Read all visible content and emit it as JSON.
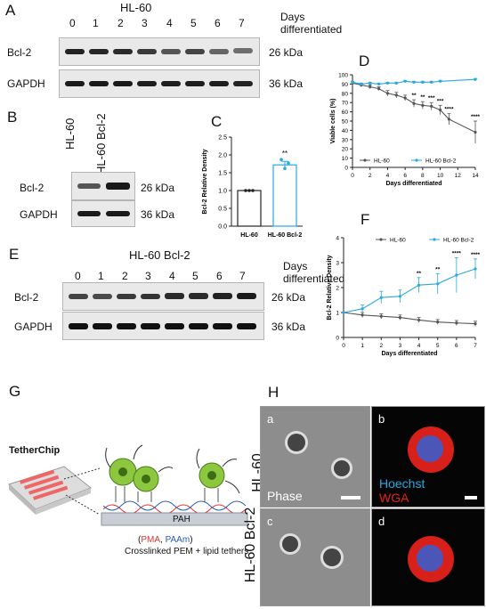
{
  "panel_labels": {
    "A": "A",
    "B": "B",
    "C": "C",
    "D": "D",
    "E": "E",
    "F": "F",
    "G": "G",
    "H": "H"
  },
  "panelA": {
    "title": "HL-60",
    "days": [
      "0",
      "1",
      "2",
      "3",
      "4",
      "5",
      "6",
      "7"
    ],
    "days_header": "Days differentiated",
    "rows": [
      {
        "name": "Bcl-2",
        "kda": "26 kDa"
      },
      {
        "name": "GAPDH",
        "kda": "36 kDa"
      }
    ]
  },
  "panelB": {
    "lanes": [
      "HL-60",
      "HL-60 Bcl-2"
    ],
    "rows": [
      {
        "name": "Bcl-2",
        "kda": "26 kDa"
      },
      {
        "name": "GAPDH",
        "kda": "36 kDa"
      }
    ]
  },
  "panelE": {
    "title": "HL-60 Bcl-2",
    "days": [
      "0",
      "1",
      "2",
      "3",
      "4",
      "5",
      "6",
      "7"
    ],
    "days_header": "Days differentiated",
    "rows": [
      {
        "name": "Bcl-2",
        "kda": "26 kDa"
      },
      {
        "name": "GAPDH",
        "kda": "36 kDa"
      }
    ]
  },
  "panelG": {
    "chip_label": "TetherChip",
    "pah": "PAH",
    "pma": "PMA",
    "paam": "PAAm",
    "legend": "Crosslinked PEM +   lipid tethers"
  },
  "panelH": {
    "rows": [
      "HL-60",
      "HL-60 Bcl-2"
    ],
    "sub": [
      "a",
      "b",
      "c",
      "d"
    ],
    "phase": "Phase",
    "hoechst": "Hoechst",
    "wga": "WGA",
    "colors": {
      "hoechst": "#29a8e0",
      "wga": "#e8201c"
    }
  },
  "chart_data": [
    {
      "id": "C",
      "type": "bar",
      "ylabel": "Bcl-2 Relative Density",
      "categories": [
        "HL-60",
        "HL-60 Bcl-2"
      ],
      "values": [
        1.0,
        1.72
      ],
      "errors": [
        0,
        0.1
      ],
      "ylim": [
        0,
        2.5
      ],
      "yticks": [
        "0.0",
        "0.5",
        "1.0",
        "1.5",
        "2.0",
        "2.5"
      ],
      "significance": [
        "",
        "**"
      ],
      "color": "#29a8e0"
    },
    {
      "id": "D",
      "type": "line",
      "xlabel": "Days differentiated",
      "ylabel": "Viable cells (%)",
      "xlim": [
        0,
        14
      ],
      "ylim": [
        0,
        100
      ],
      "xticks": [
        0,
        2,
        4,
        6,
        8,
        10,
        12,
        14
      ],
      "yticks": [
        0,
        10,
        20,
        30,
        40,
        50,
        60,
        70,
        80,
        90,
        100
      ],
      "series": [
        {
          "name": "HL-60",
          "color": "#555555",
          "x": [
            0,
            1,
            2,
            3,
            4,
            5,
            6,
            7,
            8,
            9,
            10,
            11,
            14
          ],
          "y": [
            91,
            89,
            87,
            85,
            80,
            78,
            75,
            69,
            67,
            66,
            62,
            52,
            38
          ],
          "err": [
            2,
            2,
            2,
            2,
            3,
            3,
            3,
            4,
            4,
            4,
            5,
            6,
            12
          ]
        },
        {
          "name": "HL-60 Bcl-2",
          "color": "#29a8e0",
          "x": [
            0,
            1,
            2,
            3,
            4,
            5,
            6,
            7,
            8,
            9,
            10,
            14
          ],
          "y": [
            92,
            90,
            91,
            90,
            91,
            91,
            93,
            92,
            92,
            92,
            93,
            95
          ],
          "err": [
            1,
            1,
            1,
            1,
            1,
            1,
            1,
            1,
            1,
            1,
            1,
            1
          ]
        }
      ],
      "annotations": [
        {
          "x": 7,
          "text": "**"
        },
        {
          "x": 8,
          "text": "**"
        },
        {
          "x": 9,
          "text": "***"
        },
        {
          "x": 10,
          "text": "***"
        },
        {
          "x": 11,
          "text": "****"
        },
        {
          "x": 14,
          "text": "****"
        }
      ],
      "legend": "bottom"
    },
    {
      "id": "F",
      "type": "line",
      "xlabel": "Days differentiated",
      "ylabel": "Bcl-2 Relative Density",
      "xlim": [
        0,
        7
      ],
      "ylim": [
        0,
        4
      ],
      "xticks": [
        0,
        1,
        2,
        3,
        4,
        5,
        6,
        7
      ],
      "yticks": [
        0,
        1,
        2,
        3,
        4
      ],
      "series": [
        {
          "name": "HL-60",
          "color": "#555555",
          "x": [
            0,
            1,
            2,
            3,
            4,
            5,
            6,
            7
          ],
          "y": [
            1.0,
            0.9,
            0.85,
            0.8,
            0.7,
            0.62,
            0.58,
            0.55
          ],
          "err": [
            0,
            0.1,
            0.1,
            0.1,
            0.1,
            0.1,
            0.1,
            0.1
          ]
        },
        {
          "name": "HL-60 Bcl-2",
          "color": "#29a8e0",
          "x": [
            0,
            1,
            2,
            3,
            4,
            5,
            6,
            7
          ],
          "y": [
            1.0,
            1.15,
            1.6,
            1.65,
            2.1,
            2.15,
            2.5,
            2.75
          ],
          "err": [
            0,
            0.15,
            0.25,
            0.25,
            0.3,
            0.4,
            0.7,
            0.4
          ]
        }
      ],
      "annotations": [
        {
          "x": 4,
          "text": "**"
        },
        {
          "x": 5,
          "text": "**"
        },
        {
          "x": 6,
          "text": "****"
        },
        {
          "x": 7,
          "text": "****"
        }
      ],
      "legend": "top"
    }
  ]
}
